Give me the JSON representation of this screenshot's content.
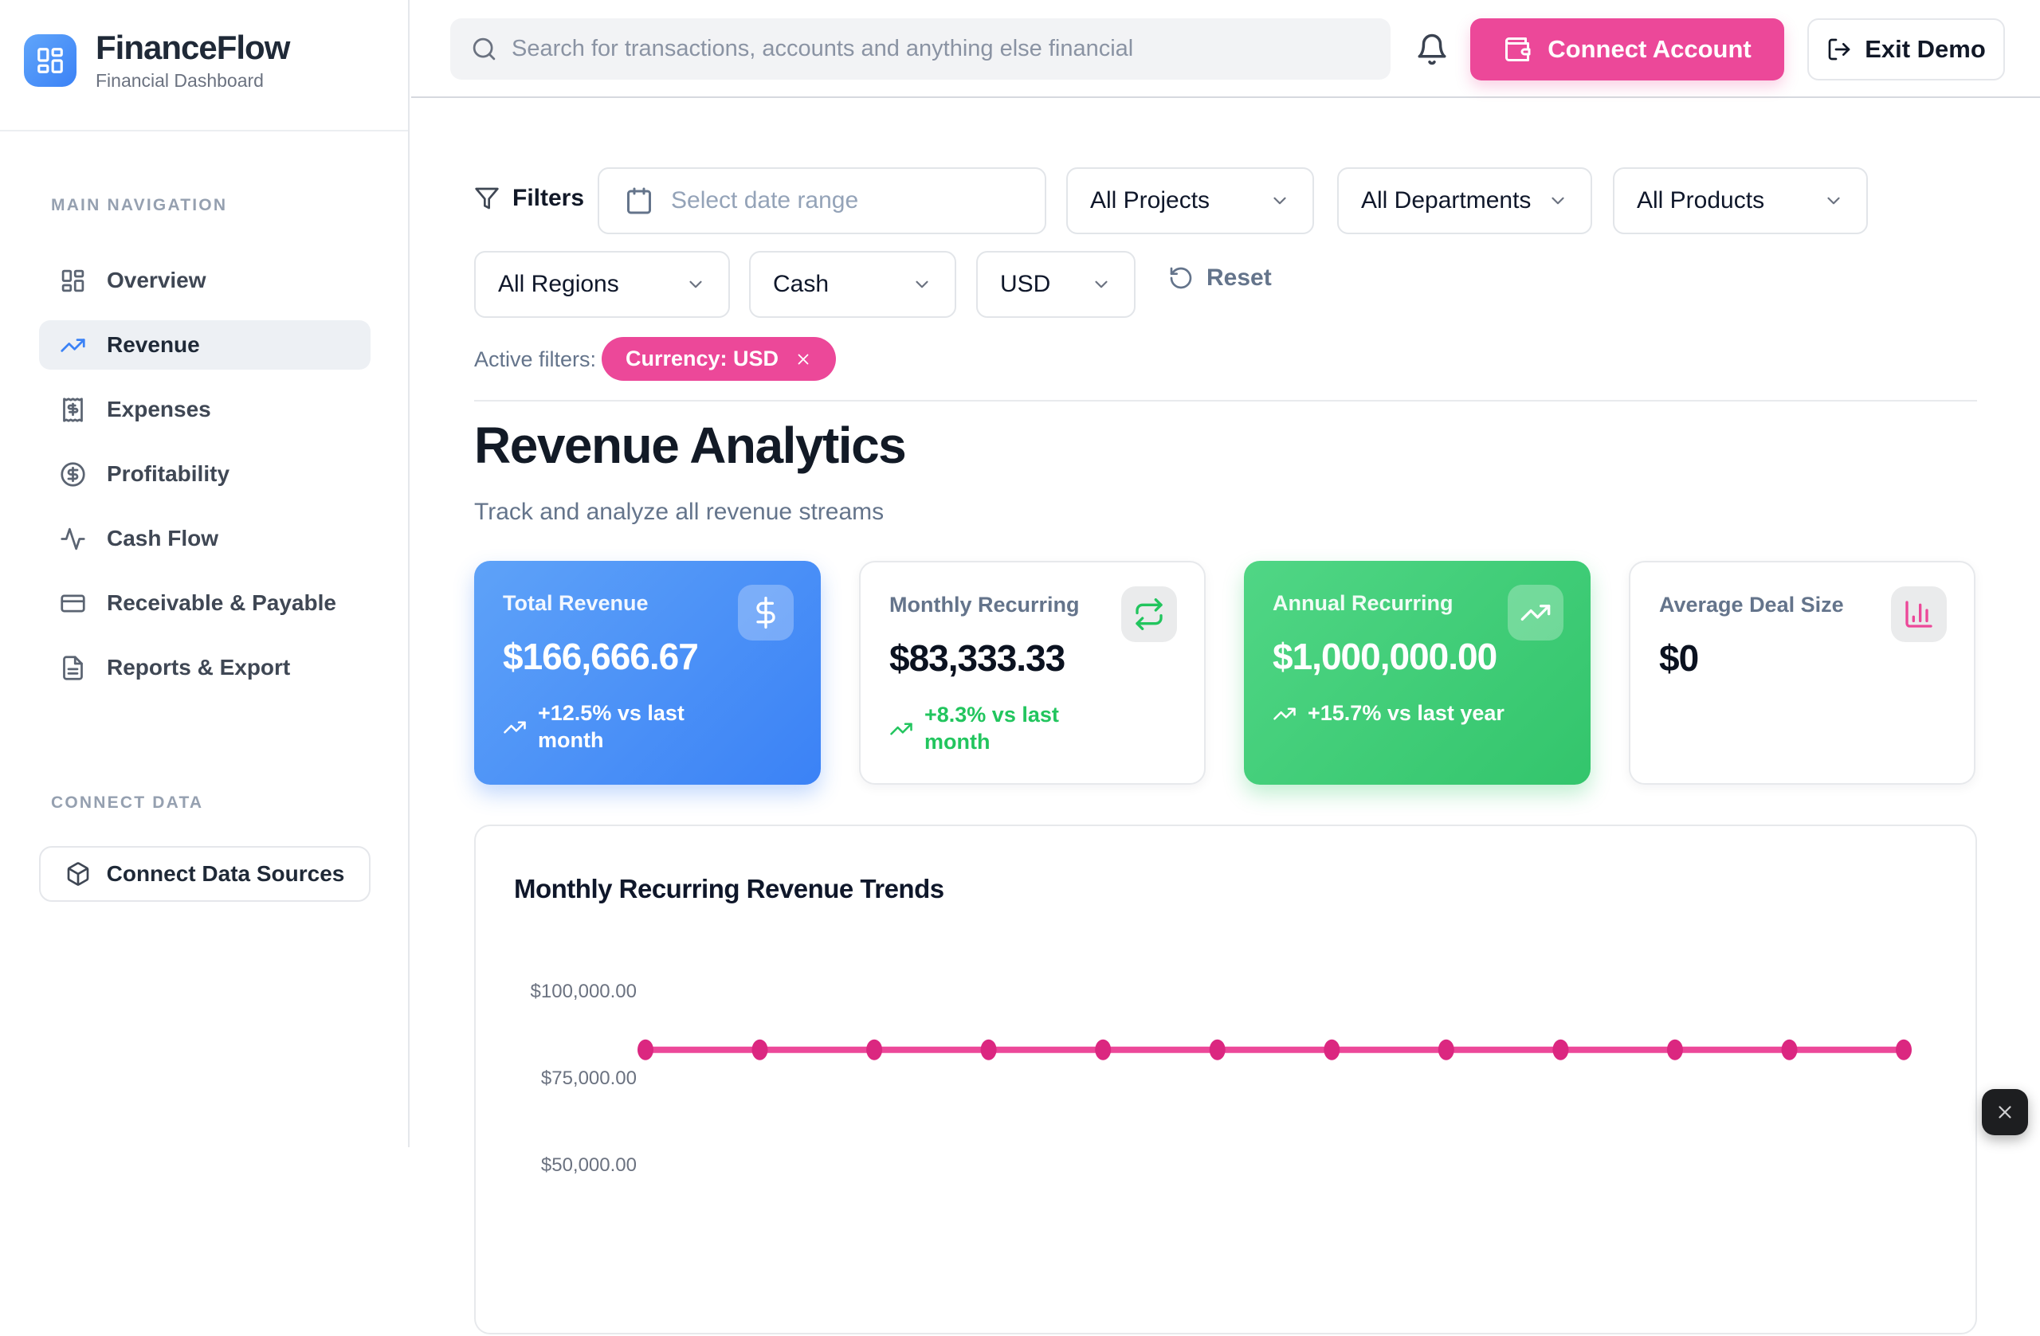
{
  "app": {
    "name": "FinanceFlow",
    "tagline": "Financial Dashboard"
  },
  "topbar": {
    "search_placeholder": "Search for transactions, accounts and anything else financial",
    "connect_account_label": "Connect Account",
    "exit_demo_label": "Exit Demo"
  },
  "sidebar": {
    "section_label": "MAIN NAVIGATION",
    "items": [
      {
        "label": "Overview",
        "icon": "layout-dashboard-icon",
        "active": false
      },
      {
        "label": "Revenue",
        "icon": "trending-up-icon",
        "active": true
      },
      {
        "label": "Expenses",
        "icon": "receipt-icon",
        "active": false
      },
      {
        "label": "Profitability",
        "icon": "circle-dollar-icon",
        "active": false
      },
      {
        "label": "Cash Flow",
        "icon": "activity-icon",
        "active": false
      },
      {
        "label": "Receivable & Payable",
        "icon": "credit-card-icon",
        "active": false
      },
      {
        "label": "Reports & Export",
        "icon": "file-text-icon",
        "active": false
      }
    ],
    "connect_section_label": "CONNECT DATA",
    "connect_button_label": "Connect Data Sources"
  },
  "filters": {
    "title": "Filters",
    "date_placeholder": "Select date range",
    "projects": "All Projects",
    "departments": "All Departments",
    "products": "All Products",
    "regions": "All Regions",
    "method": "Cash",
    "currency": "USD",
    "reset_label": "Reset",
    "active_label": "Active filters:",
    "active_badge": "Currency: USD"
  },
  "page": {
    "title": "Revenue Analytics",
    "subtitle": "Track and analyze all revenue streams"
  },
  "kpis": [
    {
      "label": "Total Revenue",
      "value": "$166,666.67",
      "trend": "+12.5% vs last month",
      "style": "blue",
      "icon": "dollar-icon"
    },
    {
      "label": "Monthly Recurring",
      "value": "$83,333.33",
      "trend": "+8.3% vs last month",
      "style": "white",
      "icon": "repeat-icon"
    },
    {
      "label": "Annual Recurring",
      "value": "$1,000,000.00",
      "trend": "+15.7% vs last year",
      "style": "green",
      "icon": "trending-up-icon"
    },
    {
      "label": "Average Deal Size",
      "value": "$0",
      "trend": "",
      "style": "white",
      "icon": "bar-chart-icon"
    }
  ],
  "chart_data": {
    "type": "line",
    "title": "Monthly Recurring Revenue Trends",
    "series": [
      {
        "name": "Monthly Recurring Revenue",
        "values": [
          83333.33,
          83333.33,
          83333.33,
          83333.33,
          83333.33,
          83333.33,
          83333.33,
          83333.33,
          83333.33,
          83333.33,
          83333.33,
          83333.33
        ]
      }
    ],
    "y_ticks": [
      {
        "label": "$100,000.00",
        "value": 100000
      },
      {
        "label": "$75,000.00",
        "value": 75000
      },
      {
        "label": "$50,000.00",
        "value": 50000
      }
    ],
    "x_labels_visible": false,
    "grid": false,
    "legend": false,
    "line_color": "#EC4899",
    "dot_color": "#DB2780"
  },
  "close_button": {
    "label": "Close"
  },
  "colors": {
    "accent_pink": "#EC4899",
    "accent_blue": "#3B82F6",
    "accent_green": "#22C55E"
  }
}
